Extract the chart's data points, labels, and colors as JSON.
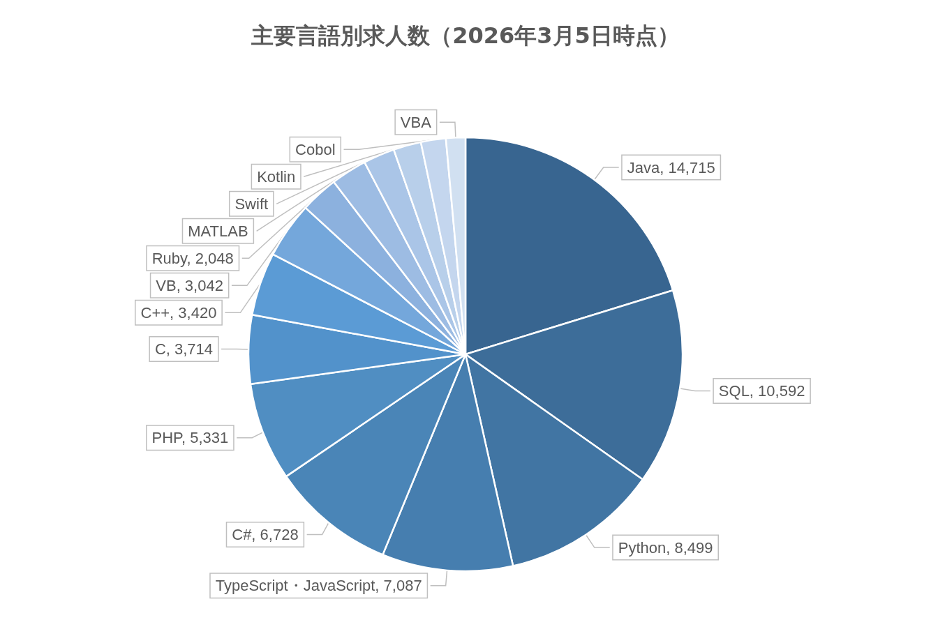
{
  "chart_data": {
    "type": "pie",
    "title": "主要言語別求人数（2026年3月5日時点）",
    "categories": [
      "Java",
      "SQL",
      "Python",
      "TypeScript・JavaScript",
      "C#",
      "PHP",
      "C",
      "C++",
      "VB",
      "Ruby",
      "MATLAB",
      "Swift",
      "Kotlin",
      "Cobol",
      "VBA"
    ],
    "values": [
      14715,
      10592,
      8499,
      7087,
      6728,
      5331,
      3714,
      3420,
      3042,
      2048,
      1950,
      1700,
      1500,
      1350,
      1050
    ],
    "value_labels": [
      "14,715",
      "10,592",
      "8,499",
      "7,087",
      "6,728",
      "5,331",
      "3,714",
      "3,420",
      "3,042",
      "2,048",
      null,
      null,
      null,
      null,
      null
    ],
    "colors": [
      "#386590",
      "#3d6d99",
      "#4175a3",
      "#467eaf",
      "#4a85b7",
      "#508ec2",
      "#5292cb",
      "#5b9bd5",
      "#74a7db",
      "#8cb1de",
      "#9dbce3",
      "#aac5e7",
      "#b8cfea",
      "#c4d6ee",
      "#d1e0f1"
    ],
    "legend": false
  }
}
